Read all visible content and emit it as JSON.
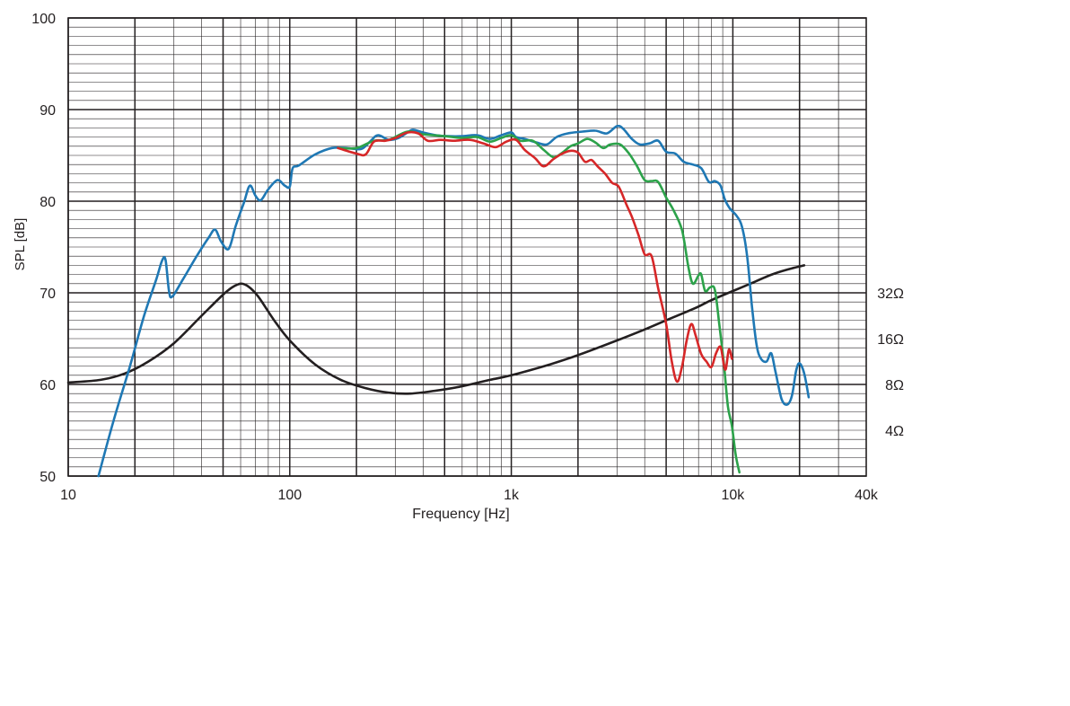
{
  "chart_data": {
    "type": "line",
    "xlabel": "Frequency [Hz]",
    "ylabel": "SPL [dB]",
    "x_scale": "log",
    "xlim": [
      10,
      40000
    ],
    "ylim": [
      50,
      100
    ],
    "grid": true,
    "x_tick_labels": [
      {
        "value": 10,
        "label": "10"
      },
      {
        "value": 100,
        "label": "100"
      },
      {
        "value": 1000,
        "label": "1k"
      },
      {
        "value": 10000,
        "label": "10k"
      },
      {
        "value": 40000,
        "label": "40k"
      }
    ],
    "y_tick_labels": [
      {
        "value": 50,
        "label": "50"
      },
      {
        "value": 60,
        "label": "60"
      },
      {
        "value": 70,
        "label": "70"
      },
      {
        "value": 80,
        "label": "80"
      },
      {
        "value": 90,
        "label": "90"
      },
      {
        "value": 100,
        "label": "100"
      }
    ],
    "impedance_tick_labels": [
      {
        "value": 70,
        "label": "32Ω"
      },
      {
        "value": 65,
        "label": "16Ω"
      },
      {
        "value": 60,
        "label": "8Ω"
      },
      {
        "value": 55,
        "label": "4Ω"
      }
    ],
    "series": [
      {
        "color": "#1f78b4",
        "points": [
          [
            13.7,
            50
          ],
          [
            16,
            56
          ],
          [
            19,
            62
          ],
          [
            22,
            67.5
          ],
          [
            25,
            71.5
          ],
          [
            26.5,
            73.5
          ],
          [
            27.5,
            73.6
          ],
          [
            28.5,
            70.2
          ],
          [
            29.5,
            69.6
          ],
          [
            33,
            71.5
          ],
          [
            38,
            74
          ],
          [
            43,
            76
          ],
          [
            46,
            76.9
          ],
          [
            49,
            75.6
          ],
          [
            53,
            74.8
          ],
          [
            57,
            77.3
          ],
          [
            62,
            79.8
          ],
          [
            66,
            81.7
          ],
          [
            70,
            80.6
          ],
          [
            74,
            80.1
          ],
          [
            80,
            81.3
          ],
          [
            88,
            82.3
          ],
          [
            95,
            81.7
          ],
          [
            100,
            81.6
          ],
          [
            103,
            83.6
          ],
          [
            110,
            83.9
          ],
          [
            130,
            85.1
          ],
          [
            155,
            85.8
          ],
          [
            180,
            85.8
          ],
          [
            210,
            85.7
          ],
          [
            230,
            86.5
          ],
          [
            250,
            87.2
          ],
          [
            280,
            86.7
          ],
          [
            310,
            86.9
          ],
          [
            340,
            87.5
          ],
          [
            360,
            87.8
          ],
          [
            400,
            87.5
          ],
          [
            460,
            87.2
          ],
          [
            520,
            87.1
          ],
          [
            600,
            87.1
          ],
          [
            700,
            87.2
          ],
          [
            800,
            86.8
          ],
          [
            900,
            87.2
          ],
          [
            1000,
            87.5
          ],
          [
            1050,
            87.0
          ],
          [
            1150,
            86.8
          ],
          [
            1300,
            86.4
          ],
          [
            1450,
            86.2
          ],
          [
            1600,
            87.0
          ],
          [
            1800,
            87.4
          ],
          [
            2100,
            87.6
          ],
          [
            2400,
            87.7
          ],
          [
            2700,
            87.4
          ],
          [
            3000,
            88.2
          ],
          [
            3200,
            87.9
          ],
          [
            3500,
            86.8
          ],
          [
            3800,
            86.2
          ],
          [
            4200,
            86.3
          ],
          [
            4600,
            86.6
          ],
          [
            5000,
            85.4
          ],
          [
            5500,
            85.2
          ],
          [
            6000,
            84.3
          ],
          [
            6600,
            84.0
          ],
          [
            7200,
            83.6
          ],
          [
            7800,
            82.1
          ],
          [
            8300,
            82.2
          ],
          [
            8800,
            81.7
          ],
          [
            9200,
            80.2
          ],
          [
            9700,
            79.2
          ],
          [
            10400,
            78.4
          ],
          [
            11000,
            77.2
          ],
          [
            11600,
            74.0
          ],
          [
            12200,
            68.5
          ],
          [
            12800,
            64.3
          ],
          [
            13400,
            62.8
          ],
          [
            14200,
            62.5
          ],
          [
            14900,
            63.4
          ],
          [
            15600,
            61.3
          ],
          [
            16600,
            58.4
          ],
          [
            17600,
            57.8
          ],
          [
            18500,
            58.8
          ],
          [
            19300,
            61.5
          ],
          [
            20000,
            62.3
          ],
          [
            21000,
            61.2
          ],
          [
            22000,
            58.6
          ]
        ]
      },
      {
        "color": "#2ca24a",
        "points": [
          [
            165,
            85.8
          ],
          [
            200,
            85.8
          ],
          [
            240,
            86.6
          ],
          [
            280,
            86.7
          ],
          [
            340,
            87.6
          ],
          [
            400,
            87.3
          ],
          [
            500,
            87.1
          ],
          [
            600,
            86.9
          ],
          [
            700,
            87.0
          ],
          [
            800,
            86.5
          ],
          [
            900,
            86.9
          ],
          [
            1000,
            87.2
          ],
          [
            1100,
            86.6
          ],
          [
            1250,
            86.6
          ],
          [
            1400,
            85.6
          ],
          [
            1550,
            84.8
          ],
          [
            1700,
            85.3
          ],
          [
            1850,
            86.0
          ],
          [
            2000,
            86.3
          ],
          [
            2200,
            86.8
          ],
          [
            2400,
            86.4
          ],
          [
            2600,
            85.8
          ],
          [
            2800,
            86.2
          ],
          [
            3100,
            86.2
          ],
          [
            3400,
            85.2
          ],
          [
            3700,
            83.8
          ],
          [
            4000,
            82.3
          ],
          [
            4300,
            82.2
          ],
          [
            4600,
            82.1
          ],
          [
            5000,
            80.4
          ],
          [
            5400,
            79.0
          ],
          [
            5900,
            76.8
          ],
          [
            6300,
            72.8
          ],
          [
            6600,
            71.0
          ],
          [
            7000,
            71.9
          ],
          [
            7200,
            72.0
          ],
          [
            7500,
            70.2
          ],
          [
            7900,
            70.6
          ],
          [
            8300,
            70.3
          ],
          [
            8700,
            66.4
          ],
          [
            9100,
            62.4
          ],
          [
            9500,
            57.6
          ],
          [
            9900,
            55.5
          ],
          [
            10300,
            52.3
          ],
          [
            10700,
            50.4
          ]
        ]
      },
      {
        "color": "#d62728",
        "points": [
          [
            165,
            85.8
          ],
          [
            200,
            85.2
          ],
          [
            220,
            85.1
          ],
          [
            240,
            86.5
          ],
          [
            270,
            86.6
          ],
          [
            300,
            86.9
          ],
          [
            340,
            87.5
          ],
          [
            380,
            87.4
          ],
          [
            420,
            86.6
          ],
          [
            480,
            86.7
          ],
          [
            550,
            86.6
          ],
          [
            650,
            86.7
          ],
          [
            750,
            86.3
          ],
          [
            850,
            85.9
          ],
          [
            950,
            86.5
          ],
          [
            1050,
            86.7
          ],
          [
            1150,
            85.6
          ],
          [
            1280,
            84.7
          ],
          [
            1400,
            83.8
          ],
          [
            1550,
            84.6
          ],
          [
            1700,
            85.2
          ],
          [
            1850,
            85.5
          ],
          [
            2000,
            85.3
          ],
          [
            2150,
            84.3
          ],
          [
            2300,
            84.5
          ],
          [
            2450,
            83.8
          ],
          [
            2650,
            83.0
          ],
          [
            2850,
            82.0
          ],
          [
            3050,
            81.6
          ],
          [
            3300,
            79.7
          ],
          [
            3500,
            78.3
          ],
          [
            3750,
            76.3
          ],
          [
            4000,
            74.2
          ],
          [
            4300,
            74.0
          ],
          [
            4600,
            70.5
          ],
          [
            5000,
            66.6
          ],
          [
            5300,
            62.5
          ],
          [
            5600,
            60.3
          ],
          [
            5900,
            62.0
          ],
          [
            6200,
            64.9
          ],
          [
            6500,
            66.6
          ],
          [
            6800,
            65.3
          ],
          [
            7200,
            63.3
          ],
          [
            7600,
            62.5
          ],
          [
            8000,
            61.9
          ],
          [
            8400,
            63.4
          ],
          [
            8800,
            64.1
          ],
          [
            9100,
            62.2
          ],
          [
            9300,
            61.7
          ],
          [
            9600,
            63.8
          ],
          [
            9900,
            62.8
          ]
        ]
      },
      {
        "color": "#231f20",
        "points": [
          [
            10,
            60.2
          ],
          [
            14,
            60.5
          ],
          [
            18,
            61.2
          ],
          [
            23,
            62.5
          ],
          [
            30,
            64.5
          ],
          [
            40,
            67.5
          ],
          [
            50,
            69.8
          ],
          [
            55,
            70.6
          ],
          [
            60,
            71.0
          ],
          [
            65,
            70.7
          ],
          [
            72,
            69.6
          ],
          [
            85,
            67.0
          ],
          [
            100,
            64.8
          ],
          [
            130,
            62.2
          ],
          [
            170,
            60.5
          ],
          [
            220,
            59.6
          ],
          [
            280,
            59.1
          ],
          [
            350,
            59.0
          ],
          [
            450,
            59.3
          ],
          [
            600,
            59.8
          ],
          [
            800,
            60.5
          ],
          [
            1000,
            61.0
          ],
          [
            1500,
            62.2
          ],
          [
            2000,
            63.2
          ],
          [
            3000,
            64.8
          ],
          [
            4000,
            66.0
          ],
          [
            5000,
            67.0
          ],
          [
            6000,
            67.8
          ],
          [
            7000,
            68.5
          ],
          [
            8000,
            69.2
          ],
          [
            10000,
            70.2
          ],
          [
            12000,
            71.0
          ],
          [
            15000,
            72.0
          ],
          [
            18000,
            72.6
          ],
          [
            21000,
            73.0
          ]
        ]
      }
    ]
  }
}
